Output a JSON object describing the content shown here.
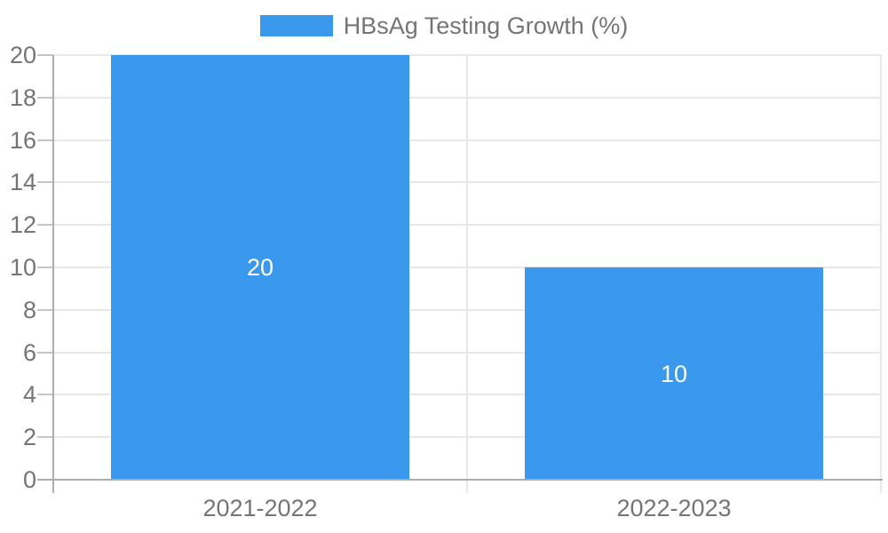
{
  "legend": {
    "label": "HBsAg Testing Growth (%)"
  },
  "colors": {
    "bar": "#3A99EC",
    "bar_label": "#FFFFFF",
    "axis_text": "#757575",
    "grid_line": "#E8E8E8",
    "axis_line": "#ADADAD",
    "tick_line": "#C6C6C6",
    "background": "#FFFFFF"
  },
  "chart_data": {
    "type": "bar",
    "title": "HBsAg Testing Growth (%)",
    "legend_position": "top-center",
    "legend_entries": [
      "HBsAg Testing Growth (%)"
    ],
    "categories": [
      "2021-2022",
      "2022-2023"
    ],
    "series": [
      {
        "name": "HBsAg Testing Growth (%)",
        "color": "#3A99EC",
        "values": [
          20,
          10
        ]
      }
    ],
    "data_labels": [
      "20",
      "10"
    ],
    "data_label_position": "center-inside",
    "xlabel": "",
    "ylabel": "",
    "ylim": [
      0,
      20
    ],
    "ytick_step": 2,
    "yticks": [
      0,
      2,
      4,
      6,
      8,
      10,
      12,
      14,
      16,
      18,
      20
    ],
    "grid": true,
    "category_separator_gridlines": true
  }
}
